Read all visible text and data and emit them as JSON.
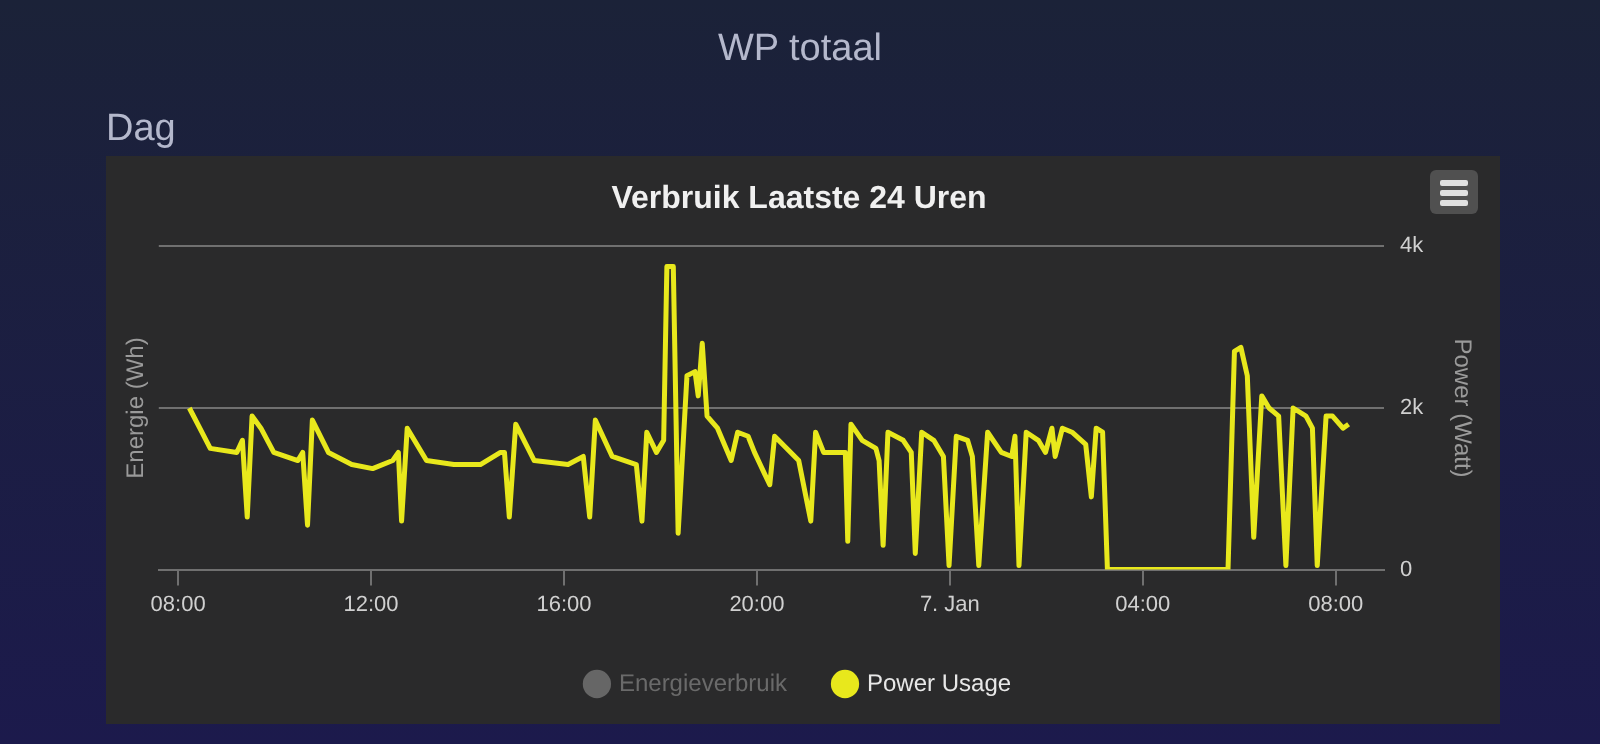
{
  "chart_data": {
    "type": "line",
    "title": "Verbruik Laatste 24 Uren",
    "annotations": [
      "WP totaal",
      "Dag"
    ],
    "ylabel": "Energie (Wh)",
    "y2label": "Power (Watt)",
    "legend": "bottom",
    "grid": "y2",
    "xlim": [
      "--01-06T07:36",
      "--01-07T09:00"
    ],
    "xticks": [
      {
        "value": "--01-06T08:00",
        "label": "08:00"
      },
      {
        "value": "--01-06T12:00",
        "label": "12:00"
      },
      {
        "value": "--01-06T16:00",
        "label": "16:00"
      },
      {
        "value": "--01-06T20:00",
        "label": "20:00"
      },
      {
        "value": "--01-07T00:00",
        "label": "7. Jan"
      },
      {
        "value": "--01-07T04:00",
        "label": "04:00"
      },
      {
        "value": "--01-07T08:00",
        "label": "08:00"
      }
    ],
    "y2lim": [
      0,
      4000
    ],
    "y2ticks": [
      0,
      {
        "value": 2000,
        "label": "2k"
      },
      {
        "value": 4000,
        "label": "4k"
      }
    ],
    "series": [
      {
        "name": "Energieverbruik",
        "color": "#666666"
      },
      {
        "name": "Power Usage",
        "color": "#e8e81c",
        "axis": "y2",
        "x": [
          "--01-06T08:14",
          "--01-06T08:27",
          "--01-06T08:40",
          "--01-06T09:13",
          "--01-06T09:20",
          "--01-06T09:26",
          "--01-06T09:32",
          "--01-06T09:43",
          "--01-06T09:59",
          "--01-06T10:29",
          "--01-06T10:35",
          "--01-06T10:41",
          "--01-06T10:47",
          "--01-06T11:07",
          "--01-06T11:36",
          "--01-06T12:02",
          "--01-06T12:27",
          "--01-06T12:34",
          "--01-06T12:38",
          "--01-06T12:45",
          "--01-06T13:09",
          "--01-06T13:43",
          "--01-06T14:16",
          "--01-06T14:41",
          "--01-06T14:46",
          "--01-06T14:52",
          "--01-06T15:00",
          "--01-06T15:23",
          "--01-06T16:05",
          "--01-06T16:24",
          "--01-06T16:32",
          "--01-06T16:39",
          "--01-06T17:00",
          "--01-06T17:30",
          "--01-06T17:37",
          "--01-06T17:43",
          "--01-06T17:55",
          "--01-06T18:04",
          "--01-06T18:08",
          "--01-06T18:16",
          "--01-06T18:22",
          "--01-06T18:33",
          "--01-06T18:43",
          "--01-06T18:47",
          "--01-06T18:52",
          "--01-06T18:58",
          "--01-06T19:11",
          "--01-06T19:28",
          "--01-06T19:36",
          "--01-06T19:49",
          "--01-06T19:57",
          "--01-06T20:16",
          "--01-06T20:22",
          "--01-06T20:52",
          "--01-06T21:07",
          "--01-06T21:13",
          "--01-06T21:23",
          "--01-06T21:50",
          "--01-06T21:53",
          "--01-06T21:57",
          "--01-06T22:11",
          "--01-06T22:28",
          "--01-06T22:32",
          "--01-06T22:37",
          "--01-06T22:43",
          "--01-06T23:02",
          "--01-06T23:12",
          "--01-06T23:17",
          "--01-06T23:25",
          "--01-06T23:40",
          "--01-06T23:52",
          "--01-06T23:59",
          "--01-07T00:08",
          "--01-07T00:22",
          "--01-07T00:28",
          "--01-07T00:36",
          "--01-07T00:47",
          "--01-07T01:04",
          "--01-07T01:17",
          "--01-07T01:21",
          "--01-07T01:26",
          "--01-07T01:35",
          "--01-07T01:50",
          "--01-07T01:59",
          "--01-07T02:07",
          "--01-07T02:11",
          "--01-07T02:20",
          "--01-07T02:32",
          "--01-07T02:49",
          "--01-07T02:56",
          "--01-07T03:02",
          "--01-07T03:10",
          "--01-07T03:16",
          "--01-07T05:46",
          "--01-07T05:54",
          "--01-07T06:02",
          "--01-07T06:10",
          "--01-07T06:18",
          "--01-07T06:28",
          "--01-07T06:37",
          "--01-07T06:49",
          "--01-07T06:58",
          "--01-07T07:07",
          "--01-07T07:23",
          "--01-07T07:31",
          "--01-07T07:37",
          "--01-07T07:48",
          "--01-07T07:56",
          "--01-07T08:09",
          "--01-07T08:16"
        ],
        "values": [
          2000,
          1750,
          1500,
          1450,
          1600,
          650,
          1900,
          1750,
          1450,
          1350,
          1450,
          550,
          1850,
          1450,
          1300,
          1250,
          1350,
          1450,
          600,
          1750,
          1350,
          1300,
          1300,
          1450,
          1450,
          650,
          1800,
          1350,
          1300,
          1400,
          650,
          1850,
          1400,
          1300,
          600,
          1700,
          1450,
          1600,
          3750,
          3750,
          450,
          2400,
          2450,
          2150,
          2800,
          1900,
          1750,
          1350,
          1700,
          1650,
          1450,
          1050,
          1650,
          1350,
          600,
          1700,
          1450,
          1450,
          350,
          1800,
          1600,
          1500,
          1350,
          300,
          1700,
          1600,
          1450,
          200,
          1700,
          1600,
          1400,
          50,
          1650,
          1600,
          1400,
          50,
          1700,
          1450,
          1400,
          1650,
          50,
          1700,
          1600,
          1450,
          1750,
          1400,
          1750,
          1700,
          1550,
          900,
          1750,
          1700,
          0,
          0,
          2700,
          2750,
          2400,
          400,
          2150,
          2000,
          1900,
          50,
          2000,
          1900,
          1750,
          50,
          1900,
          1900,
          1750,
          1800
        ]
      }
    ]
  }
}
